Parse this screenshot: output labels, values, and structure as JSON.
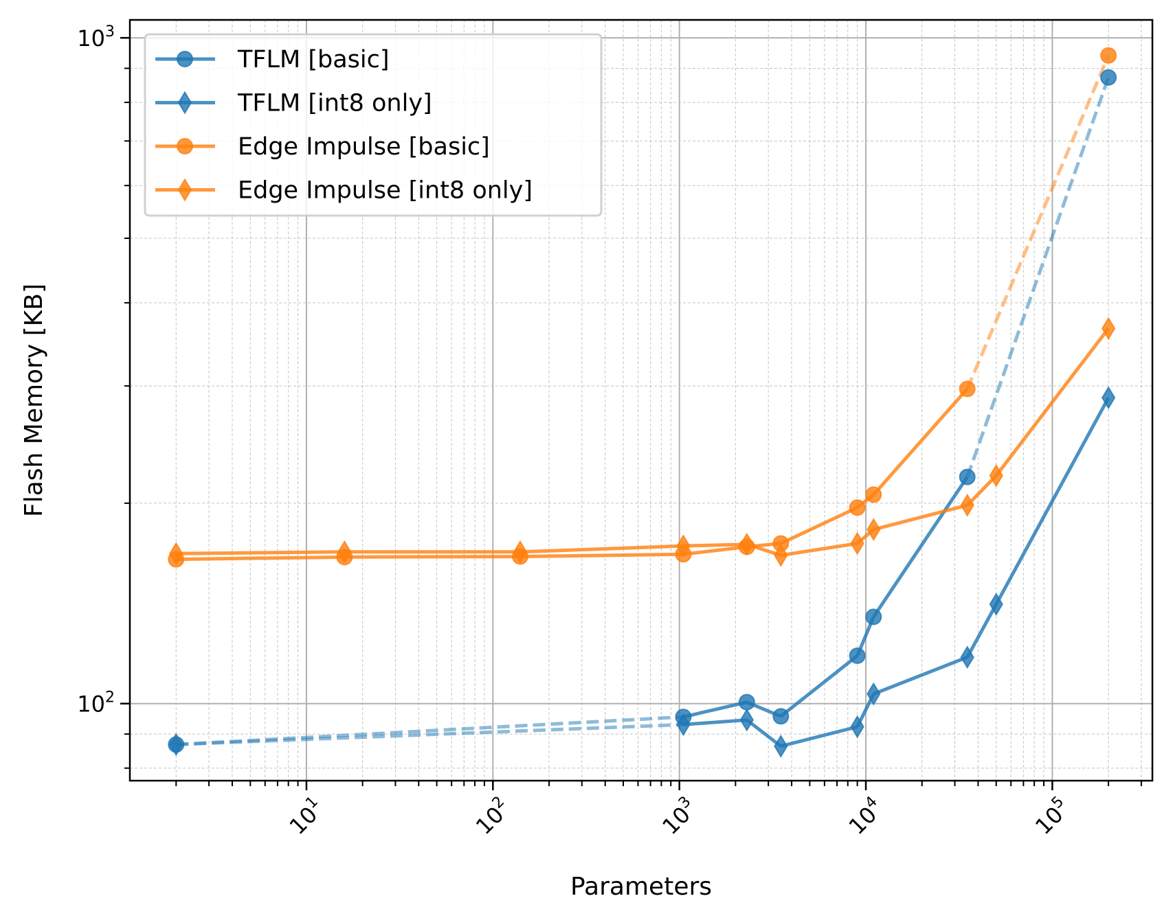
{
  "chart_data": {
    "type": "line",
    "title": "",
    "xlabel": "Parameters",
    "ylabel": "Flash Memory [KB]",
    "xscale": "log",
    "yscale": "log",
    "xlim": [
      1.13,
      344000
    ],
    "ylim": [
      76.6,
      1064
    ],
    "x_tick_labels": [
      {
        "value": 10,
        "base": "10",
        "exp": "1"
      },
      {
        "value": 100,
        "base": "10",
        "exp": "2"
      },
      {
        "value": 1000,
        "base": "10",
        "exp": "3"
      },
      {
        "value": 10000,
        "base": "10",
        "exp": "4"
      },
      {
        "value": 100000,
        "base": "10",
        "exp": "5"
      }
    ],
    "y_tick_labels": [
      {
        "value": 100,
        "base": "10",
        "exp": "2"
      },
      {
        "value": 1000,
        "base": "10",
        "exp": "3"
      }
    ],
    "grid": "major and minor",
    "legend_position": "top-left",
    "series": [
      {
        "name": "TFLM [basic]",
        "color": "#1f77b4",
        "marker": "circle",
        "x": [
          2,
          1050,
          2300,
          3500,
          9000,
          11000,
          35000,
          200000
        ],
        "y": [
          86.8,
          95.5,
          100.5,
          95.7,
          118,
          135,
          219,
          872
        ],
        "dashed_segments": [
          [
            0,
            1
          ],
          [
            6,
            7
          ]
        ]
      },
      {
        "name": "TFLM [int8 only]",
        "color": "#1f77b4",
        "marker": "diamond",
        "x": [
          2,
          1050,
          2300,
          3500,
          9000,
          11000,
          35000,
          50000,
          200000
        ],
        "y": [
          86.8,
          93,
          94.5,
          86.3,
          92.3,
          103.4,
          117.4,
          141,
          288
        ],
        "dashed_segments": [
          [
            0,
            1
          ]
        ]
      },
      {
        "name": "Edge Impulse [basic]",
        "color": "#ff7f0e",
        "marker": "circle",
        "x": [
          2,
          16,
          140,
          1050,
          2300,
          3500,
          9000,
          11000,
          35000,
          200000
        ],
        "y": [
          164.7,
          166,
          166.3,
          167.6,
          172,
          174,
          197,
          206,
          297,
          941
        ],
        "dashed_segments": [
          [
            8,
            9
          ]
        ]
      },
      {
        "name": "Edge Impulse [int8 only]",
        "color": "#ff7f0e",
        "marker": "diamond",
        "x": [
          2,
          16,
          140,
          1050,
          2300,
          3500,
          9000,
          11000,
          35000,
          50000,
          200000
        ],
        "y": [
          168,
          169,
          169,
          172.5,
          173.5,
          167,
          174,
          182.6,
          198.6,
          220,
          366
        ],
        "dashed_segments": []
      }
    ]
  }
}
